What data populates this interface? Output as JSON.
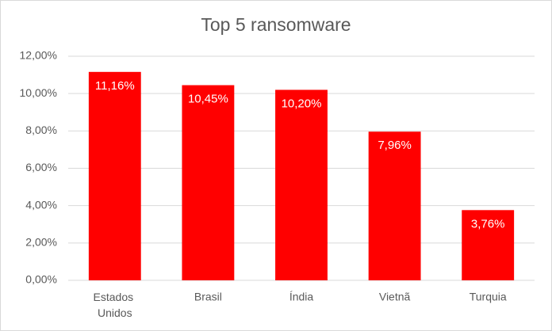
{
  "chart_data": {
    "type": "bar",
    "title": "Top 5 ransomware",
    "categories": [
      "Estados Unidos",
      "Brasil",
      "Índia",
      "Vietnã",
      "Turquia"
    ],
    "values": [
      11.16,
      10.45,
      10.2,
      7.96,
      3.76
    ],
    "value_labels": [
      "11,16%",
      "10,45%",
      "10,20%",
      "7,96%",
      "3,76%"
    ],
    "color": "#ff0000",
    "ylim": [
      0,
      12
    ],
    "yticks": [
      {
        "value": 0,
        "label": "0,00%"
      },
      {
        "value": 2,
        "label": "2,00%"
      },
      {
        "value": 4,
        "label": "4,00%"
      },
      {
        "value": 6,
        "label": "6,00%"
      },
      {
        "value": 8,
        "label": "8,00%"
      },
      {
        "value": 10,
        "label": "10,00%"
      },
      {
        "value": 12,
        "label": "12,00%"
      }
    ],
    "grid": true
  }
}
